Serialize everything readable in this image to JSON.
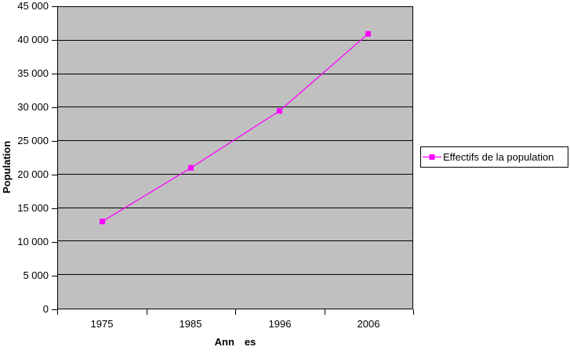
{
  "chart_data": {
    "type": "line",
    "title": "",
    "categories": [
      "1975",
      "1985",
      "1996",
      "2006"
    ],
    "series": [
      {
        "name": "Effectifs de la population",
        "values": [
          13000,
          21000,
          29500,
          41000
        ],
        "color": "#FF00FF",
        "marker": "square"
      }
    ],
    "xlabel": "Ann es",
    "ylabel": "Population",
    "ylim": [
      0,
      45000
    ],
    "ytick_interval": 5000,
    "ytick_labels": [
      "0",
      "5 000",
      "10 000",
      "15 000",
      "20 000",
      "25 000",
      "30 000",
      "35 000",
      "40 000",
      "45 000"
    ],
    "grid": "horizontal",
    "legend_position": "right",
    "plot_bg_color": "#C0C0C0",
    "gridline_color": "#000000",
    "axis_color": "#000000",
    "background_color": "#FFFFFF"
  }
}
